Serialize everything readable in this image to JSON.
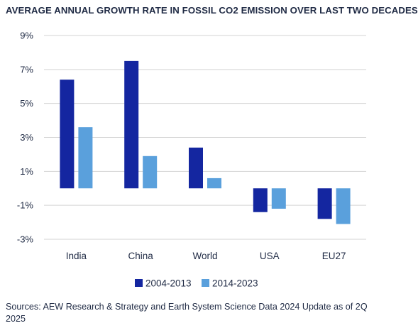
{
  "chart_data": {
    "type": "bar",
    "title": "AVERAGE ANNUAL GROWTH RATE IN FOSSIL CO2 EMISSION OVER LAST TWO DECADES",
    "categories": [
      "India",
      "China",
      "World",
      "USA",
      "EU27"
    ],
    "series": [
      {
        "name": "2004-2013",
        "values": [
          6.4,
          7.5,
          2.4,
          -1.4,
          -1.8
        ],
        "color": "#1426a0"
      },
      {
        "name": "2014-2023",
        "values": [
          3.6,
          1.9,
          0.6,
          -1.2,
          -2.1
        ],
        "color": "#5aa0dc"
      }
    ],
    "ylim": [
      -3,
      9
    ],
    "yticks": [
      9,
      7,
      5,
      3,
      1,
      -1,
      -3
    ],
    "ytick_labels": [
      "9%",
      "7%",
      "5%",
      "3%",
      "1%",
      "-1%",
      "-3%"
    ],
    "grid": true,
    "legend": "bottom-center"
  },
  "source": "Sources: AEW Research & Strategy and Earth System Science Data 2024 Update as of 2Q 2025"
}
